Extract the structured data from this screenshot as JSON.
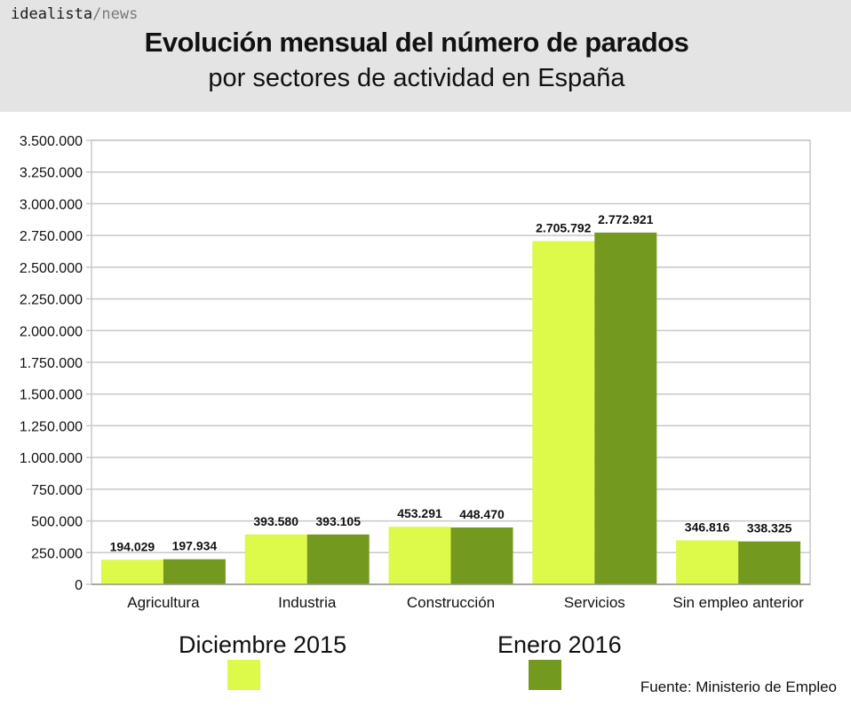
{
  "brand": {
    "name": "idealista",
    "separator": "/",
    "section": "news"
  },
  "header": {
    "title": "Evolución mensual del número de parados",
    "subtitle": "por sectores de actividad en España"
  },
  "source": "Fuente: Ministerio de Empleo",
  "colors": {
    "dic2015": "#ddf94a",
    "ene2016": "#74991f",
    "header_bg": "#e4e4e4",
    "grid": "#c8c8c8"
  },
  "chart_data": {
    "type": "bar",
    "categories": [
      "Agricultura",
      "Industria",
      "Construcción",
      "Servicios",
      "Sin empleo anterior"
    ],
    "series": [
      {
        "name": "Diciembre 2015",
        "values": [
          194029,
          393580,
          453291,
          2705792,
          346816
        ],
        "labels": [
          "194.029",
          "393.580",
          "453.291",
          "2.705.792",
          "346.816"
        ],
        "color": "#ddf94a"
      },
      {
        "name": "Enero 2016",
        "values": [
          197934,
          393105,
          448470,
          2772921,
          338325
        ],
        "labels": [
          "197.934",
          "393.105",
          "448.470",
          "2.772.921",
          "338.325"
        ],
        "color": "#74991f"
      }
    ],
    "ylim": [
      0,
      3500000
    ],
    "yticks": [
      0,
      250000,
      500000,
      750000,
      1000000,
      1250000,
      1500000,
      1750000,
      2000000,
      2250000,
      2500000,
      2750000,
      3000000,
      3250000,
      3500000
    ],
    "ytick_labels": [
      "0",
      "250.000",
      "500.000",
      "750.000",
      "1.000.000",
      "1.250.000",
      "1.500.000",
      "1.750.000",
      "2.000.000",
      "2.250.000",
      "2.500.000",
      "2.750.000",
      "3.000.000",
      "3.250.000",
      "3.500.000"
    ],
    "grid": true,
    "legend_position": "bottom"
  }
}
